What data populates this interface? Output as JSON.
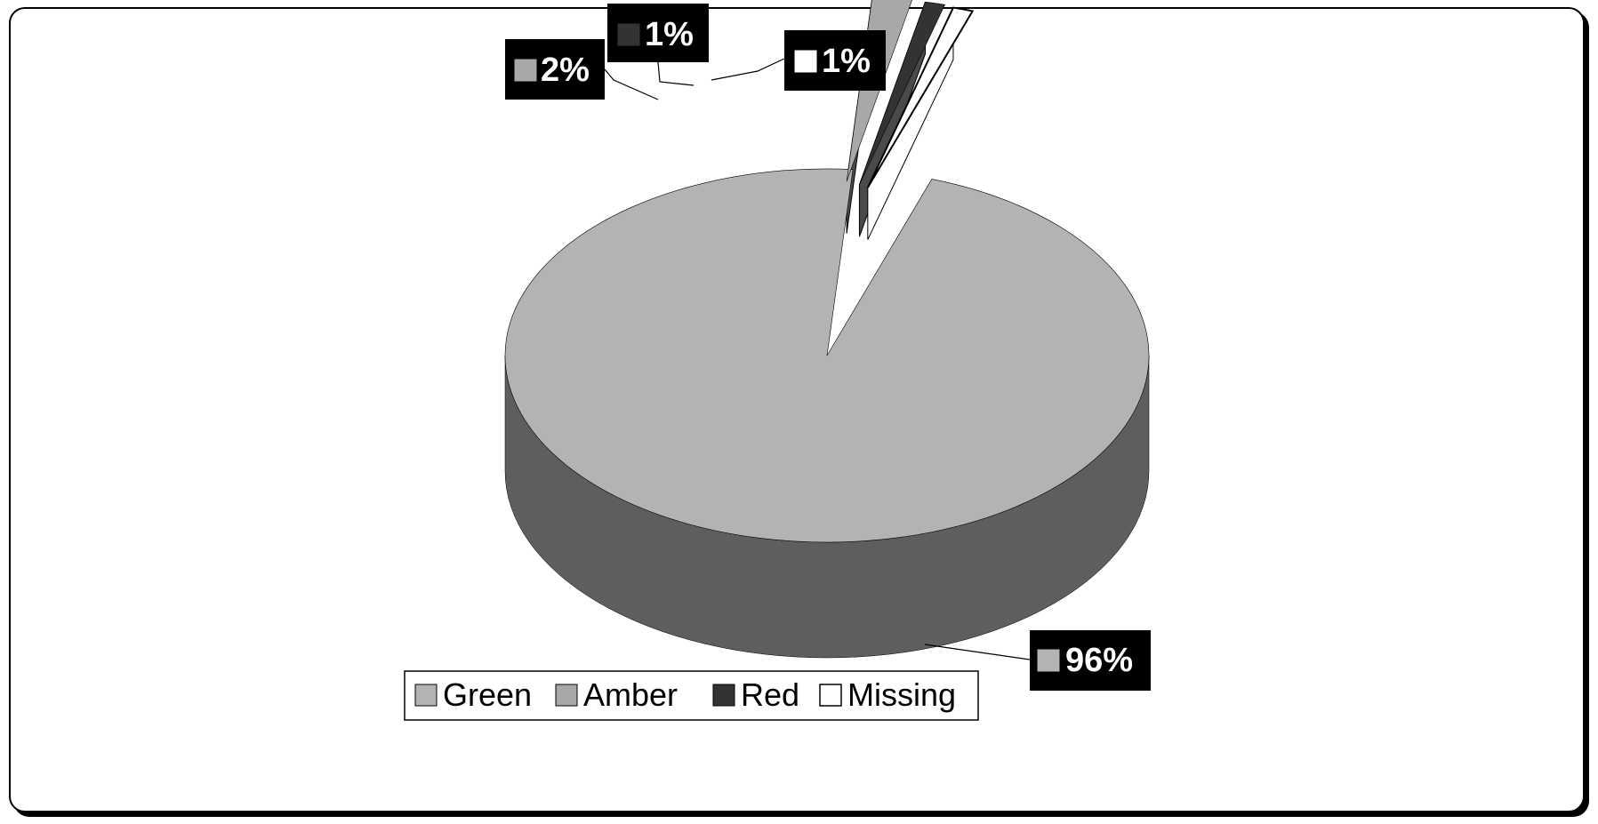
{
  "chart_data": {
    "type": "pie",
    "style": "3d-exploded",
    "title": "",
    "slices": [
      {
        "name": "Green",
        "value": 96,
        "label": "96%",
        "color": "#b3b3b3",
        "side_color": "#5e5e5e"
      },
      {
        "name": "Amber",
        "value": 2,
        "label": "2%",
        "color": "#a8a8a8",
        "side_color": "#5e5e5e"
      },
      {
        "name": "Red",
        "value": 1,
        "label": "1%",
        "color": "#333333",
        "side_color": "#1f1f1f"
      },
      {
        "name": "Missing",
        "value": 1,
        "label": "1%",
        "color": "#ffffff",
        "side_color": "#ffffff"
      }
    ],
    "legend": {
      "position": "bottom",
      "entries": [
        "Green",
        "Amber",
        "Red",
        "Missing"
      ]
    },
    "data_labels": "percent"
  }
}
